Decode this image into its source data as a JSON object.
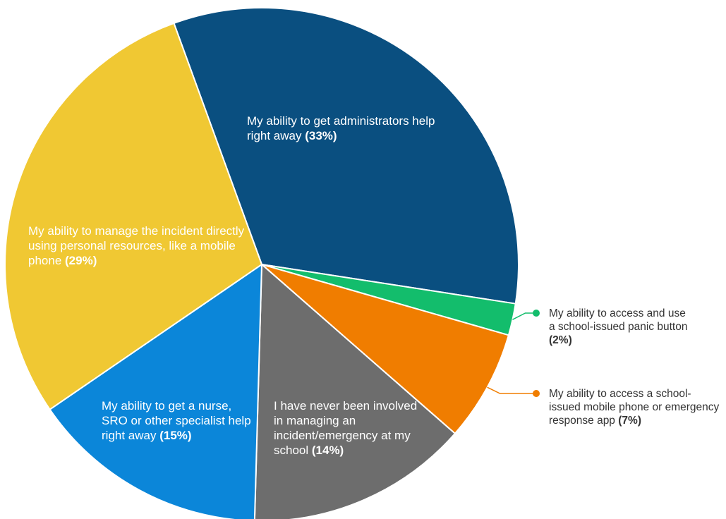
{
  "chart_data": {
    "type": "pie",
    "slices": [
      {
        "label": "My ability to get administrators help right away",
        "pct_text": "(33%)",
        "value": 33,
        "color": "#0a4f80"
      },
      {
        "label": "My ability to access and use a school-issued panic button",
        "pct_text": "(2%)",
        "value": 2,
        "color": "#13bd6c"
      },
      {
        "label": "My ability to access a school-issued mobile phone or emergency response app",
        "pct_text": "(7%)",
        "value": 7,
        "color": "#f07d00"
      },
      {
        "label": "I have never been involved in managing an incident/emergency at my school",
        "pct_text": "(14%)",
        "value": 14,
        "color": "#6d6d6d"
      },
      {
        "label": "My ability to get a nurse, SRO or other specialist help right away",
        "pct_text": "(15%)",
        "value": 15,
        "color": "#0b86d9"
      },
      {
        "label": "My ability to manage the incident directly using personal resources, like a mobile phone",
        "pct_text": "(29%)",
        "value": 29,
        "color": "#f0c833"
      }
    ]
  }
}
